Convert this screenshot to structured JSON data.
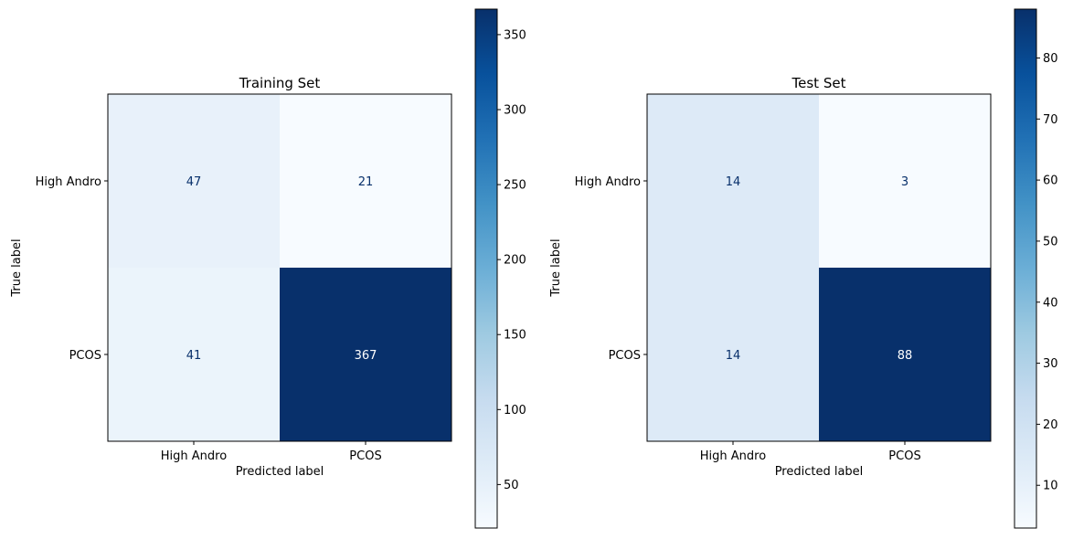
{
  "chart_data": [
    {
      "type": "heatmap",
      "title": "Training Set",
      "xlabel": "Predicted label",
      "ylabel": "True label",
      "x_categories": [
        "High Andro",
        "PCOS"
      ],
      "y_categories": [
        "High Andro",
        "PCOS"
      ],
      "values": [
        [
          47,
          21
        ],
        [
          41,
          367
        ]
      ],
      "colormap": "Blues",
      "colorbar": {
        "min": 21,
        "max": 367,
        "ticks": [
          50,
          100,
          150,
          200,
          250,
          300,
          350
        ]
      }
    },
    {
      "type": "heatmap",
      "title": "Test Set",
      "xlabel": "Predicted label",
      "ylabel": "True label",
      "x_categories": [
        "High Andro",
        "PCOS"
      ],
      "y_categories": [
        "High Andro",
        "PCOS"
      ],
      "values": [
        [
          14,
          3
        ],
        [
          14,
          88
        ]
      ],
      "colormap": "Blues",
      "colorbar": {
        "min": 3,
        "max": 88,
        "ticks": [
          10,
          20,
          30,
          40,
          50,
          60,
          70,
          80
        ]
      }
    }
  ]
}
